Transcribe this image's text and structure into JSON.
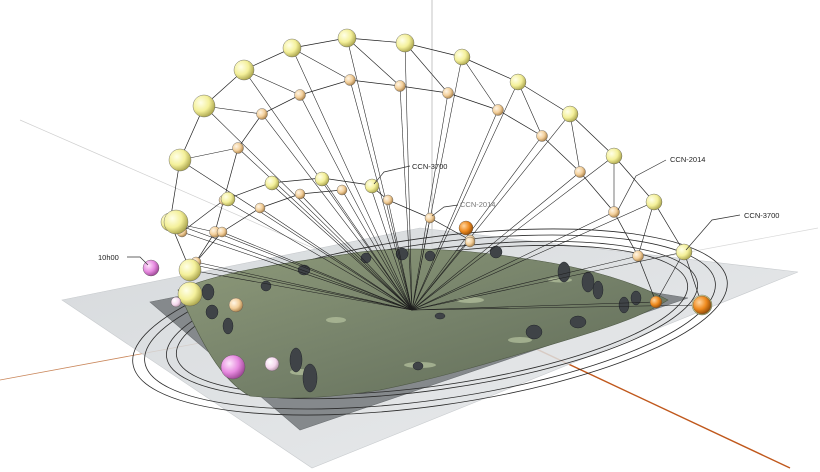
{
  "labels": {
    "time_label": "10h00",
    "ccn_3700_inner": "CCN-3700",
    "ccn_2014_inner": "CCN-2014",
    "ccn_2014_outer": "CCN-2014",
    "ccn_3700_outer": "CCN-3700"
  },
  "colors": {
    "outer_arc_sphere": "#f4f09a",
    "inner_arc_sphere": "#f3cf9a",
    "solstice_sphere": "#ef8a1e",
    "hour_sphere": "#e78ae0",
    "terrain": "#7e8a6c",
    "platform": "#8a8d90",
    "axis_red": "#c0581c"
  }
}
